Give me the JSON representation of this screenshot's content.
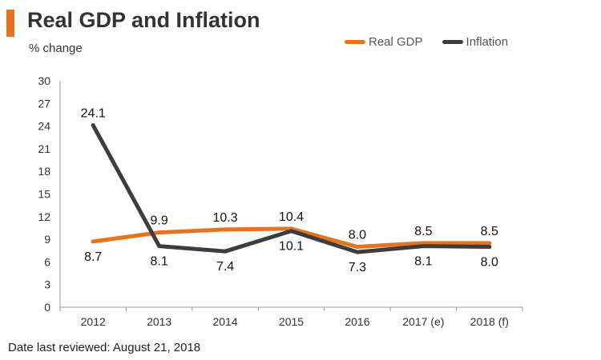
{
  "header": {
    "title": "Real GDP and Inflation",
    "subtitle": "% change",
    "accent_color": "#e8731d"
  },
  "footer": {
    "note": "Date last reviewed: August 21, 2018"
  },
  "chart_data": {
    "type": "line",
    "title": "Real GDP and Inflation",
    "ylabel": "% change",
    "xlabel": "",
    "categories": [
      "2012",
      "2013",
      "2014",
      "2015",
      "2016",
      "2017 (e)",
      "2018 (f)"
    ],
    "ylim": [
      0,
      30
    ],
    "yticks": [
      0,
      3,
      6,
      9,
      12,
      15,
      18,
      21,
      24,
      27,
      30
    ],
    "grid": false,
    "legend_position": "top-right",
    "series": [
      {
        "name": "Real GDP",
        "color": "#e8731d",
        "values": [
          8.7,
          9.9,
          10.3,
          10.4,
          8.0,
          8.5,
          8.5
        ]
      },
      {
        "name": "Inflation",
        "color": "#3d3d3d",
        "values": [
          24.1,
          8.1,
          7.4,
          10.1,
          7.3,
          8.1,
          8.0
        ]
      }
    ]
  }
}
